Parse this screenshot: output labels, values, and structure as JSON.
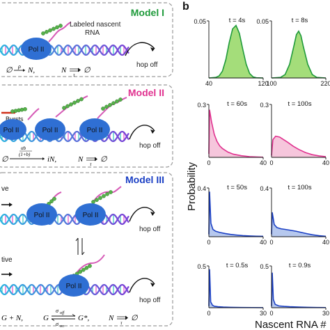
{
  "panel_b": {
    "letter": "b"
  },
  "panel_a": {
    "models": [
      {
        "title": "Model I",
        "title_color": "#1e9a3a",
        "pol_labels": [
          "Pol II"
        ],
        "rna_label_line1": "Labeled nascent",
        "rna_label_line2": "RNA",
        "hop_off": "hop off",
        "eq_left_empty": "∅",
        "eq_left_rate": "ρ",
        "eq_left_product": "N,",
        "eq_right_species": "N",
        "eq_right_delay": "τ",
        "eq_right_empty": "∅"
      },
      {
        "title": "Model II",
        "title_color": "#e0318f",
        "pol_labels": [
          "Pol II",
          "Pol II",
          "Pol II"
        ],
        "bursts_label": "Bursts",
        "hop_off": "hop off",
        "eq_left_empty": "∅",
        "eq_left_rate": "αb",
        "eq_left_rate_den": "(1+b)",
        "eq_left_product": "iN,",
        "eq_right_species": "N",
        "eq_right_delay": "τ",
        "eq_right_empty": "∅"
      },
      {
        "title": "Model III",
        "title_color": "#1a3fc4",
        "active_label": "ve",
        "inactive_label": "tive",
        "pol_labels_active": [
          "Pol II",
          "Pol II"
        ],
        "pol_labels_inactive": [
          "Pol II"
        ],
        "hop_off_active": "hop off",
        "hop_off_inactive": "hop off",
        "eq_left": "G + N,",
        "eq_mid_left": "G",
        "eq_mid_top": "σ",
        "eq_mid_top_sub": "off",
        "eq_mid_bot": "σ",
        "eq_mid_bot_sub": "on",
        "eq_mid_right": "G*,",
        "eq_right_species": "N",
        "eq_right_delay": "τ",
        "eq_right_empty": "∅"
      }
    ]
  },
  "y_axis_label": "Probability",
  "x_axis_label": "Nascent RNA #",
  "chart_data": [
    {
      "type": "area",
      "row": 0,
      "col": 0,
      "title": "t = 4s",
      "color": "#1e9a3a",
      "fill": "#a4dd7a",
      "ytop_label": "0.05",
      "xtick_left": "40",
      "xtick_right": "120",
      "xlim": [
        40,
        120
      ],
      "ylim": [
        0,
        0.05
      ],
      "x": [
        40,
        50,
        55,
        60,
        65,
        70,
        75,
        80,
        85,
        90,
        95,
        100,
        105,
        110,
        120
      ],
      "y": [
        0,
        0.0005,
        0.0018,
        0.006,
        0.016,
        0.031,
        0.043,
        0.046,
        0.039,
        0.025,
        0.012,
        0.004,
        0.001,
        0.0002,
        0
      ]
    },
    {
      "type": "area",
      "row": 0,
      "col": 1,
      "title": "t = 8s",
      "color": "#1e9a3a",
      "fill": "#a4dd7a",
      "ytop_label": "0.05",
      "xtick_left": "100",
      "xtick_right": "220",
      "xlim": [
        100,
        220
      ],
      "ylim": [
        0,
        0.05
      ],
      "x": [
        100,
        120,
        130,
        140,
        150,
        155,
        160,
        165,
        170,
        180,
        190,
        200,
        220
      ],
      "y": [
        0,
        0.0005,
        0.003,
        0.012,
        0.029,
        0.038,
        0.041,
        0.037,
        0.028,
        0.012,
        0.003,
        0.0005,
        0
      ]
    },
    {
      "type": "area",
      "row": 1,
      "col": 0,
      "title": "t = 60s",
      "color": "#e0318f",
      "fill": "#f6c6dc",
      "ytop_label": "0.3",
      "xtick_left": "0",
      "xtick_right": "40",
      "xlim": [
        0,
        40
      ],
      "ylim": [
        0,
        0.3
      ],
      "x": [
        0,
        0.5,
        2,
        4,
        6,
        8,
        10,
        14,
        18,
        24,
        30,
        36,
        40
      ],
      "y": [
        0.02,
        0.27,
        0.2,
        0.13,
        0.09,
        0.065,
        0.05,
        0.03,
        0.018,
        0.009,
        0.004,
        0.002,
        0.001
      ]
    },
    {
      "type": "area",
      "row": 1,
      "col": 1,
      "title": "t = 100s",
      "color": "#e0318f",
      "fill": "#f6c6dc",
      "ytop_label": "0.3",
      "xtick_left": "0",
      "xtick_right": "40",
      "xlim": [
        0,
        40
      ],
      "ylim": [
        0,
        0.3
      ],
      "x": [
        0,
        1,
        3,
        6,
        9,
        12,
        16,
        20,
        25,
        30,
        35,
        40
      ],
      "y": [
        0.01,
        0.1,
        0.12,
        0.115,
        0.1,
        0.085,
        0.063,
        0.045,
        0.027,
        0.015,
        0.008,
        0.004
      ]
    },
    {
      "type": "area",
      "row": 2,
      "col": 0,
      "title": "t = 50s",
      "color": "#1a3fc4",
      "fill": "#b6c8ee",
      "ytop_label": "0.4",
      "xtick_left": "0",
      "xtick_right": "40",
      "xlim": [
        0,
        40
      ],
      "ylim": [
        0,
        0.4
      ],
      "x": [
        0,
        0.5,
        1.5,
        3,
        5,
        8,
        12,
        16,
        20,
        25,
        30,
        35,
        40
      ],
      "y": [
        0.02,
        0.37,
        0.11,
        0.06,
        0.045,
        0.035,
        0.026,
        0.019,
        0.014,
        0.009,
        0.006,
        0.004,
        0.003
      ]
    },
    {
      "type": "area",
      "row": 2,
      "col": 1,
      "title": "t = 100s",
      "color": "#1a3fc4",
      "fill": "#b6c8ee",
      "ytop_label": "0.4",
      "xtick_left": "0",
      "xtick_right": "40",
      "xlim": [
        0,
        40
      ],
      "ylim": [
        0,
        0.4
      ],
      "x": [
        0,
        0.5,
        2,
        4,
        7,
        10,
        14,
        18,
        22,
        26,
        30,
        35,
        40
      ],
      "y": [
        0.02,
        0.2,
        0.1,
        0.075,
        0.065,
        0.06,
        0.053,
        0.045,
        0.035,
        0.025,
        0.016,
        0.008,
        0.003
      ]
    },
    {
      "type": "area",
      "row": 3,
      "col": 0,
      "title": "t = 0.5s",
      "color": "#1a3fc4",
      "fill": "#b6c8ee",
      "ytop_label": "0.5",
      "xtick_left": "0",
      "xtick_right": "30",
      "xlim": [
        0,
        30
      ],
      "ylim": [
        0,
        0.5
      ],
      "x": [
        0,
        0.4,
        1,
        2,
        3,
        5,
        8,
        12,
        18,
        24,
        30
      ],
      "y": [
        0.02,
        0.46,
        0.07,
        0.03,
        0.018,
        0.012,
        0.008,
        0.005,
        0.003,
        0.002,
        0.001
      ]
    },
    {
      "type": "area",
      "row": 3,
      "col": 1,
      "title": "t = 0.9s",
      "color": "#1a3fc4",
      "fill": "#b6c8ee",
      "ytop_label": "0.5",
      "xtick_left": "0",
      "xtick_right": "30",
      "xlim": [
        0,
        30
      ],
      "ylim": [
        0,
        0.5
      ],
      "x": [
        0,
        0.4,
        1,
        2,
        4,
        7,
        10,
        15,
        20,
        25,
        30
      ],
      "y": [
        0.02,
        0.42,
        0.1,
        0.04,
        0.022,
        0.016,
        0.012,
        0.008,
        0.005,
        0.003,
        0.002
      ]
    }
  ]
}
